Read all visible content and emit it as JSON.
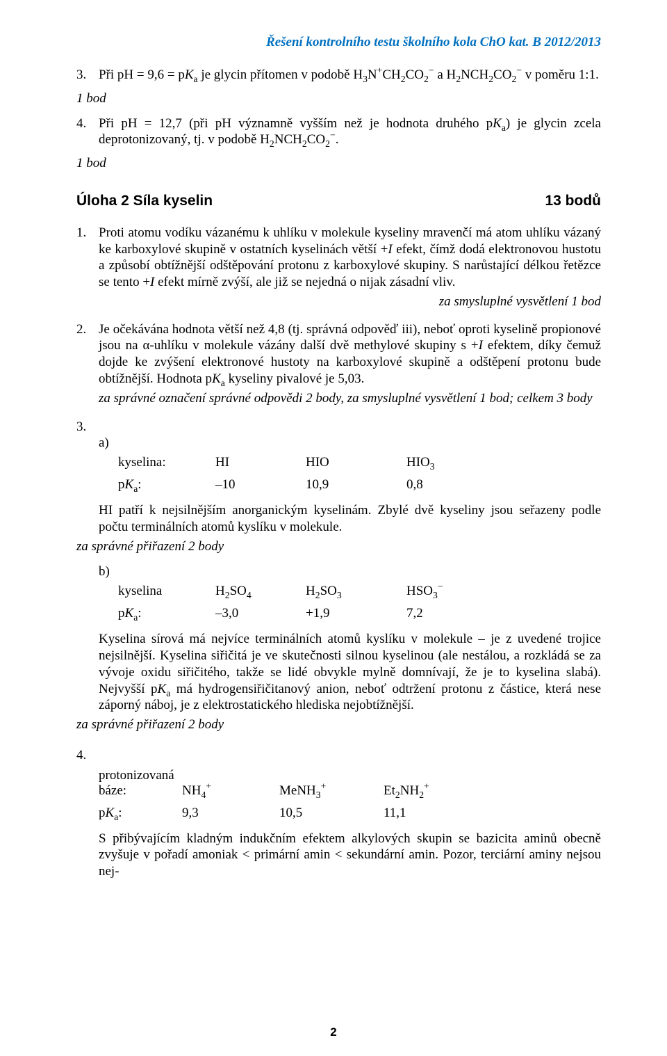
{
  "header": "Řešení kontrolního testu školního kola ChO kat. B 2012/2013",
  "q3": {
    "n": "3.",
    "text": "Při pH = 9,6 = p<span class='italic'>K</span><span class='sub'>a</span> je glycin přítomen v podobě H<span class='sub'>3</span>N<span class='sup'>+</span>CH<span class='sub'>2</span>CO<span class='sub'>2</span><span class='sup'>−</span> a H<span class='sub'>2</span>NCH<span class='sub'>2</span>CO<span class='sub'>2</span><span class='sup'>−</span> v poměru 1:1.",
    "hint": "1 bod"
  },
  "q4": {
    "n": "4.",
    "text": "Při pH = 12,7 (při pH významně vyšším než je hodnota druhého p<span class='italic'>K</span><span class='sub'>a</span>) je glycin zcela deprotonizovaný, tj. v podobě H<span class='sub'>2</span>NCH<span class='sub'>2</span>CO<span class='sub'>2</span><span class='sup'>−</span>.",
    "hint": "1 bod"
  },
  "task2": {
    "label": "Úloha 2   Síla kyselin",
    "pts": "13 bodů"
  },
  "t1": {
    "n": "1.",
    "text": "Proti atomu vodíku vázanému k uhlíku v molekule kyseliny mravenčí má atom uhlíku vázaný ke karboxylové skupině v ostatních kyselinách větší +<span class='italic'>I</span> efekt, čímž dodá elektronovou hustotu a způsobí obtížnější odštěpování protonu z karboxylové skupiny. S narůstající délkou řetězce se tento +<span class='italic'>I</span> efekt mírně zvýší, ale již se nejedná o nijak zásadní vliv.",
    "hint": "za smysluplné vysvětlení 1 bod"
  },
  "t2": {
    "n": "2.",
    "text": "Je očekávána hodnota větší než 4,8 (tj. správná odpověď iii), neboť oproti kyselině propionové jsou na α-uhlíku v molekule vázány další dvě methylové skupiny s +<span class='italic'>I</span> efektem, díky čemuž dojde ke zvýšení elektronové hustoty na karboxylové skupině a odštěpení protonu bude obtížnější. Hodnota p<span class='italic'>K</span><span class='sub'>a</span> kyseliny pivalové je 5,03.",
    "hint": "za správné označení správné odpovědi 2 body, za smysluplné vysvětlení 1 bod; celkem 3 body"
  },
  "t3": {
    "n": "3.",
    "a": {
      "letter": "a)",
      "label": "kyselina:",
      "pkalabel": "p<span class='italic'>K</span><span class='sub'>a</span>:",
      "h1": "HI",
      "h2": "HIO",
      "h3": "HIO<span class='sub'>3</span>",
      "v1": "–10",
      "v2": "10,9",
      "v3": "0,8",
      "note": "HI patří k nejsilnějším anorganickým kyselinám. Zbylé dvě kyseliny jsou seřazeny podle počtu terminálních atomů kyslíku v molekule.",
      "hint": "za správné přiřazení 2 body"
    },
    "b": {
      "letter": "b)",
      "label": "kyselina",
      "pkalabel": "p<span class='italic'>K</span><span class='sub'>a</span>:",
      "h1": "H<span class='sub'>2</span>SO<span class='sub'>4</span>",
      "h2": "H<span class='sub'>2</span>SO<span class='sub'>3</span>",
      "h3": "HSO<span class='sub'>3</span><span class='sup'>−</span>",
      "v1": "–3,0",
      "v2": "+1,9",
      "v3": "7,2",
      "note": "Kyselina sírová má nejvíce terminálních atomů kyslíku v molekule – je z uvedené trojice nejsilnější. Kyselina siřičitá je ve skutečnosti silnou kyselinou (ale nestálou, a rozkládá se za vývoje oxidu siřičitého, takže se lidé obvykle mylně domnívají, že je to kyselina slabá). Nejvyšší p<span class='italic'>K</span><span class='sub'>a</span> má hydrogensiřičitanový anion, neboť odtržení protonu z částice, která nese záporný náboj, je z elektrostatického hlediska nejobtížnější.",
      "hint": "za správné přiřazení 2 body"
    }
  },
  "t4": {
    "n": "4.",
    "label1": "protonizovaná",
    "label2": "báze:",
    "pkalabel": "p<span class='italic'>K</span><span class='sub'>a</span>:",
    "h1": "NH<span class='sub'>4</span><span class='sup'>+</span>",
    "h2": "MeNH<span class='sub'>3</span><span class='sup'>+</span>",
    "h3": "Et<span class='sub'>2</span>NH<span class='sub'>2</span><span class='sup'>+</span>",
    "v1": "9,3",
    "v2": "10,5",
    "v3": "11,1",
    "note": "S přibývajícím kladným indukčním efektem alkylových skupin se bazicita aminů obecně zvyšuje v pořadí amoniak &lt; primární amin &lt; sekundární amin. Pozor, terciární aminy nejsou nej-"
  },
  "page": "2"
}
